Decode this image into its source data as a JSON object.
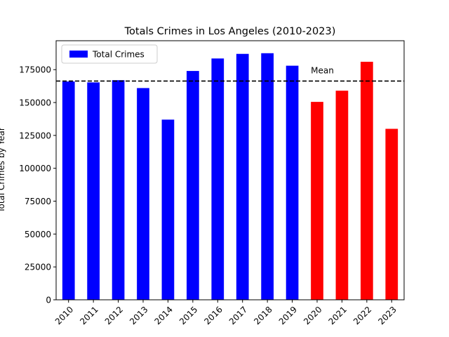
{
  "chart_data": {
    "type": "bar",
    "title": "Totals Crimes in Los Angeles (2010-2023)",
    "xlabel": "",
    "ylabel": "Total Crimes by Year",
    "categories": [
      "2010",
      "2011",
      "2012",
      "2013",
      "2014",
      "2015",
      "2016",
      "2017",
      "2018",
      "2019",
      "2020",
      "2021",
      "2022",
      "2023"
    ],
    "values": [
      166000,
      165300,
      167000,
      161000,
      137000,
      174000,
      183500,
      187000,
      187500,
      178000,
      150500,
      159000,
      181000,
      130000
    ],
    "bar_colors": [
      "#0000ff",
      "#0000ff",
      "#0000ff",
      "#0000ff",
      "#0000ff",
      "#0000ff",
      "#0000ff",
      "#0000ff",
      "#0000ff",
      "#0000ff",
      "#ff0000",
      "#ff0000",
      "#ff0000",
      "#ff0000"
    ],
    "ylim": [
      0,
      197000
    ],
    "yticks": [
      0,
      25000,
      50000,
      75000,
      100000,
      125000,
      150000,
      175000
    ],
    "ytick_labels": [
      "0",
      "25000",
      "50000",
      "75000",
      "100000",
      "125000",
      "150000",
      "175000"
    ],
    "mean_line": {
      "value": 166345,
      "label": "Mean",
      "style": "dashed",
      "color": "#000000"
    },
    "legend": {
      "entries": [
        {
          "label": "Total Crimes",
          "color": "#0000ff"
        }
      ],
      "placement": "top-left"
    },
    "grid": false
  }
}
